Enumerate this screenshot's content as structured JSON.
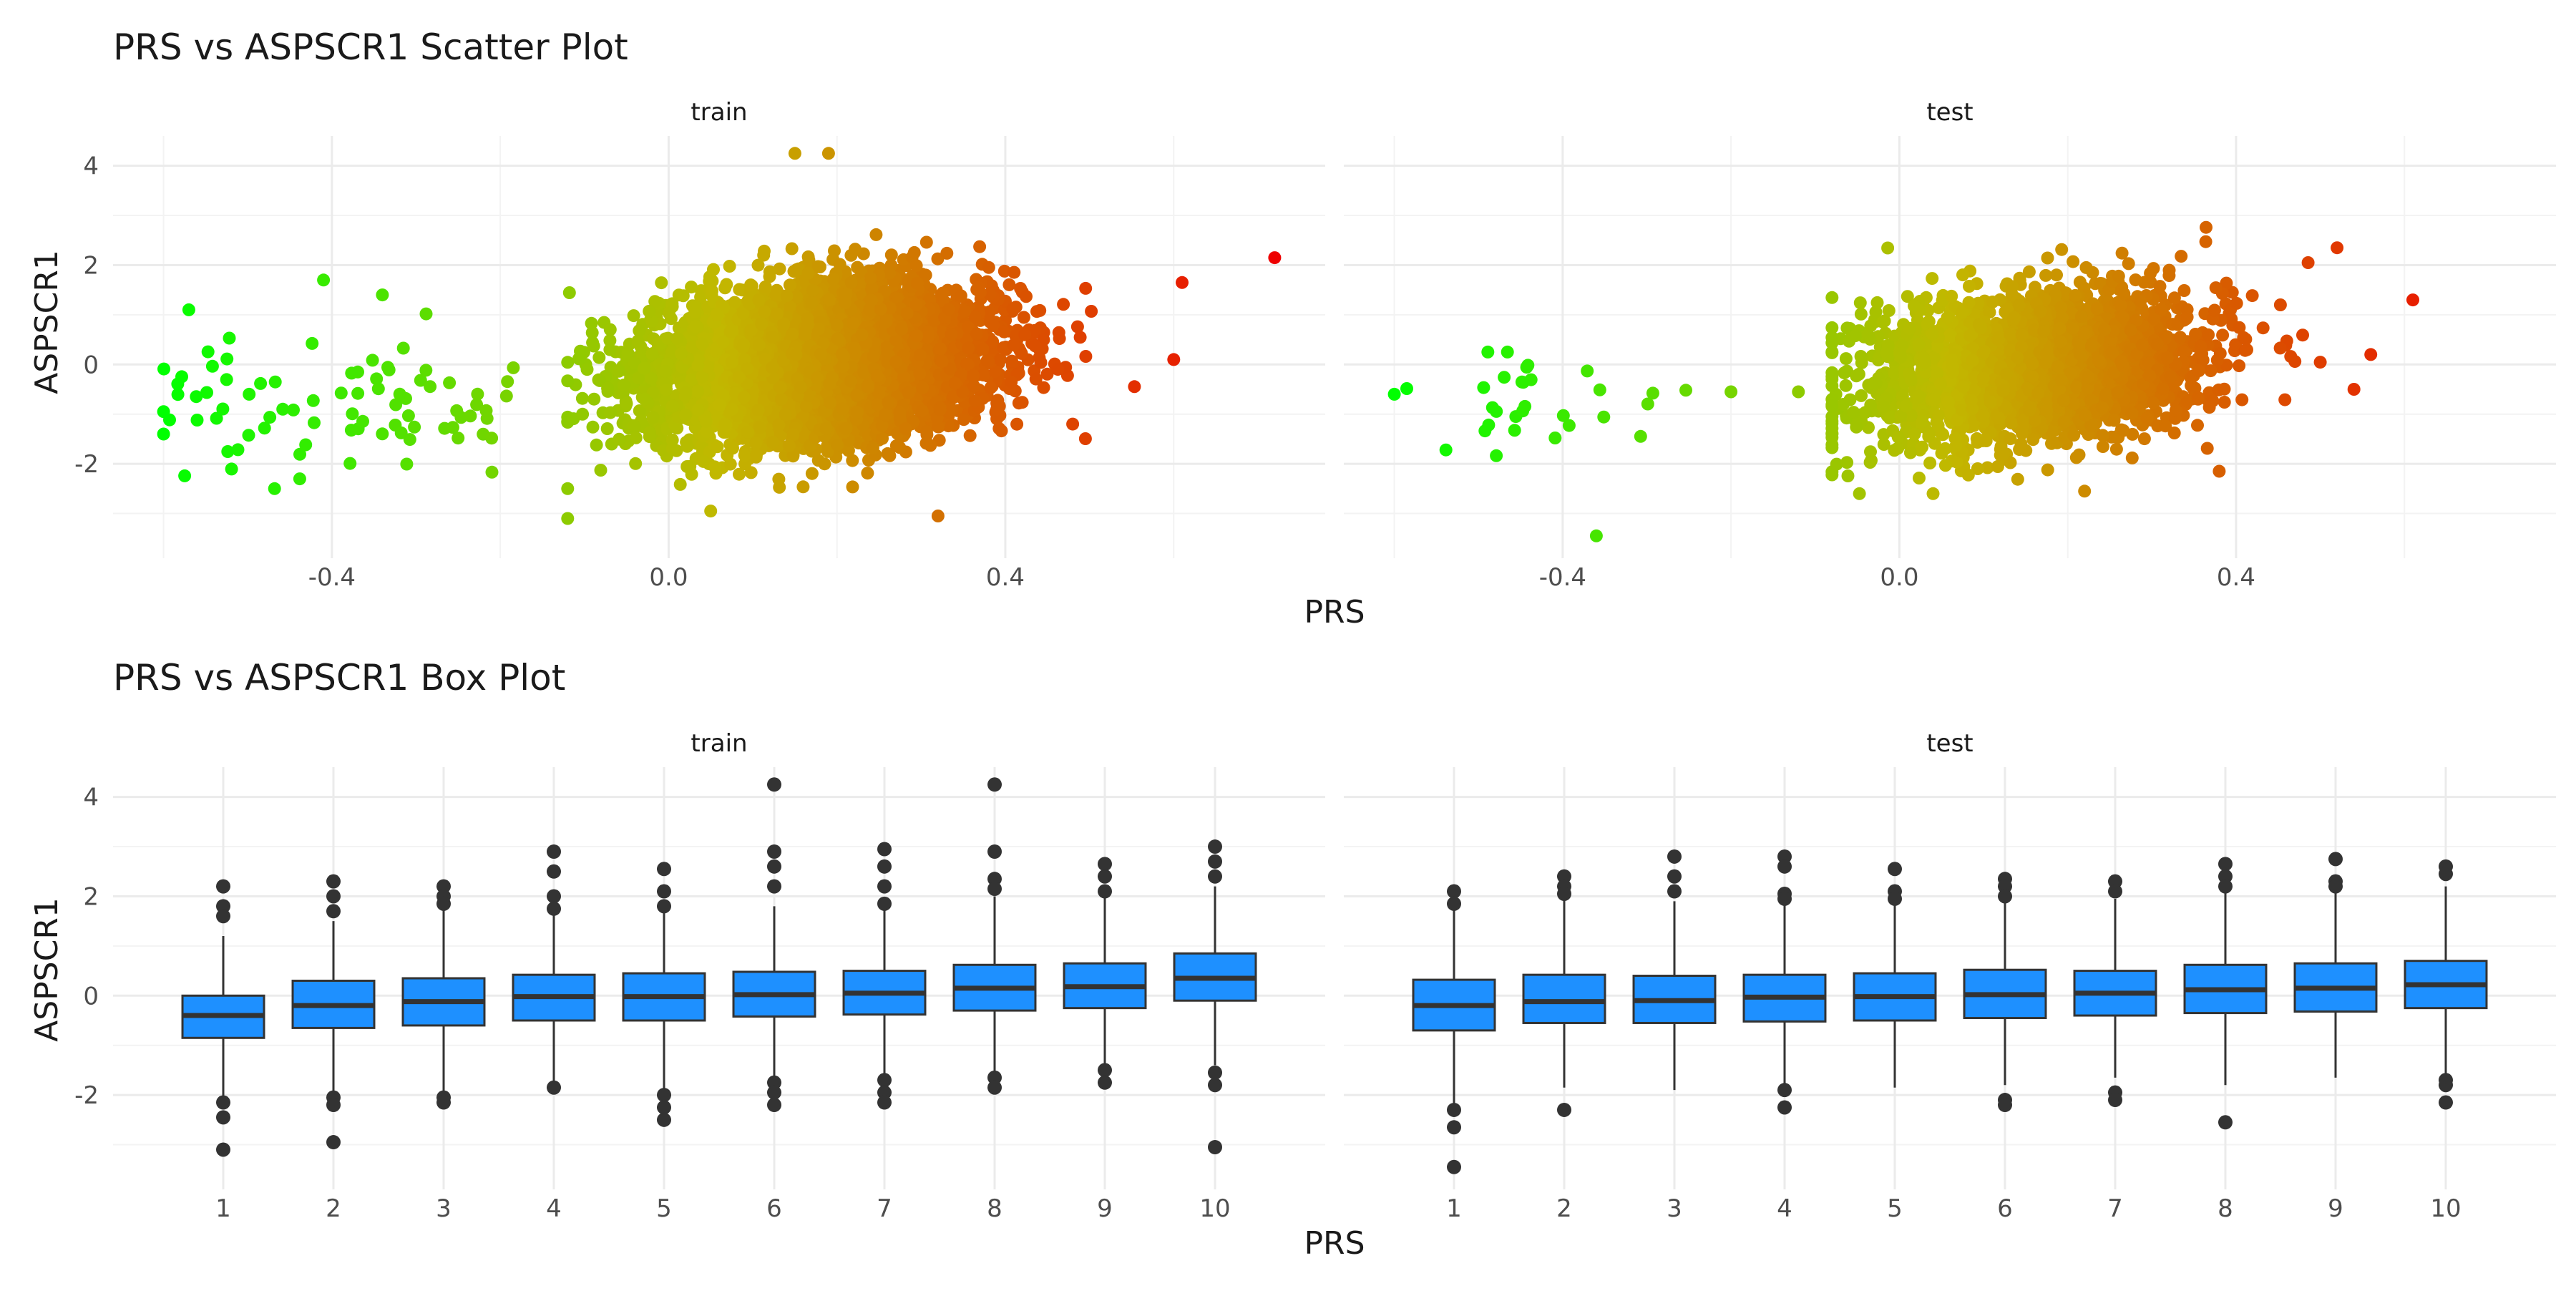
{
  "chart_data": [
    {
      "type": "scatter",
      "title": "PRS vs ASPSCR1 Scatter Plot",
      "xlabel": "PRS",
      "ylabel": "ASPSCR1",
      "xlim": [
        -0.66,
        0.78
      ],
      "ylim": [
        -3.9,
        4.6
      ],
      "xticks": [
        -0.4,
        0.0,
        0.4
      ],
      "xtick_labels": [
        "-0.4",
        "0.0",
        "0.4"
      ],
      "yticks": [
        -2,
        0,
        2,
        4
      ],
      "ytick_labels": [
        "-2",
        "0",
        "2",
        "4"
      ],
      "grid": true,
      "legend": "none",
      "color_scale": {
        "low": "#00ff00",
        "mid": "#c2b800",
        "high": "#ee0000",
        "range": [
          -0.6,
          0.72
        ]
      },
      "panels": [
        {
          "name": "train",
          "notable_points": [
            {
              "x": 0.15,
              "y": 4.25
            },
            {
              "x": 0.19,
              "y": 4.25
            },
            {
              "x": 0.72,
              "y": 2.15
            },
            {
              "x": -0.6,
              "y": -0.95
            },
            {
              "x": -0.6,
              "y": -1.4
            },
            {
              "x": -0.57,
              "y": 1.1
            },
            {
              "x": -0.41,
              "y": 1.7
            },
            {
              "x": -0.34,
              "y": 1.4
            },
            {
              "x": -0.12,
              "y": -3.1
            },
            {
              "x": 0.05,
              "y": -2.95
            },
            {
              "x": 0.32,
              "y": -3.05
            },
            {
              "x": 0.61,
              "y": 1.65
            },
            {
              "x": 0.6,
              "y": 0.1
            },
            {
              "x": 0.48,
              "y": -1.2
            }
          ],
          "clusters": [
            {
              "x_range": [
                -0.6,
                -0.18
              ],
              "y_range": [
                -2.5,
                1.7
              ],
              "approx_points": 80
            },
            {
              "x_range": [
                -0.12,
                0.58
              ],
              "y_range": [
                -2.6,
                3.0
              ],
              "center_y": [
                -0.4,
                0.6
              ],
              "approx_points": 5000
            }
          ]
        },
        {
          "name": "test",
          "notable_points": [
            {
              "x": 0.61,
              "y": 1.3
            },
            {
              "x": 0.52,
              "y": 2.35
            },
            {
              "x": -0.36,
              "y": -3.45
            },
            {
              "x": -0.6,
              "y": -0.6
            },
            {
              "x": -0.2,
              "y": -0.55
            },
            {
              "x": -0.12,
              "y": -0.55
            },
            {
              "x": 0.04,
              "y": -2.6
            },
            {
              "x": 0.22,
              "y": -2.55
            },
            {
              "x": 0.38,
              "y": -2.15
            },
            {
              "x": 0.56,
              "y": 0.2
            },
            {
              "x": 0.54,
              "y": -0.5
            }
          ],
          "clusters": [
            {
              "x_range": [
                -0.6,
                -0.25
              ],
              "y_range": [
                -3.45,
                0.25
              ],
              "approx_points": 30
            },
            {
              "x_range": [
                -0.08,
                0.5
              ],
              "y_range": [
                -2.6,
                2.9
              ],
              "center_y": [
                -0.5,
                0.5
              ],
              "approx_points": 2500
            }
          ]
        }
      ]
    },
    {
      "type": "box",
      "title": "PRS vs ASPSCR1 Box Plot",
      "xlabel": "PRS",
      "ylabel": "ASPSCR1",
      "categories": [
        "1",
        "2",
        "3",
        "4",
        "5",
        "6",
        "7",
        "8",
        "9",
        "10"
      ],
      "ylim": [
        -3.9,
        4.6
      ],
      "yticks": [
        -2,
        0,
        2,
        4
      ],
      "ytick_labels": [
        "-2",
        "0",
        "2",
        "4"
      ],
      "grid": true,
      "box_fill": "#1e90ff",
      "panels": [
        {
          "name": "train",
          "boxes": [
            {
              "q1": -0.85,
              "median": -0.4,
              "q3": 0.0,
              "whisker_low": -2.05,
              "whisker_high": 1.2,
              "outliers": [
                2.2,
                1.8,
                1.6,
                -2.15,
                -2.45,
                -3.1
              ]
            },
            {
              "q1": -0.65,
              "median": -0.2,
              "q3": 0.3,
              "whisker_low": -2.0,
              "whisker_high": 1.5,
              "outliers": [
                2.3,
                2.0,
                1.7,
                -2.05,
                -2.2,
                -2.95
              ]
            },
            {
              "q1": -0.6,
              "median": -0.12,
              "q3": 0.35,
              "whisker_low": -1.95,
              "whisker_high": 1.75,
              "outliers": [
                2.2,
                2.0,
                1.85,
                -2.05,
                -2.15
              ]
            },
            {
              "q1": -0.5,
              "median": -0.02,
              "q3": 0.42,
              "whisker_low": -1.85,
              "whisker_high": 1.7,
              "outliers": [
                2.9,
                2.5,
                2.0,
                1.75,
                -1.85
              ]
            },
            {
              "q1": -0.5,
              "median": -0.02,
              "q3": 0.45,
              "whisker_low": -1.9,
              "whisker_high": 1.75,
              "outliers": [
                2.55,
                2.1,
                1.8,
                -2.0,
                -2.25,
                -2.5
              ]
            },
            {
              "q1": -0.42,
              "median": 0.02,
              "q3": 0.48,
              "whisker_low": -1.7,
              "whisker_high": 1.8,
              "outliers": [
                4.25,
                2.9,
                2.6,
                2.2,
                -1.75,
                -1.95,
                -2.2
              ]
            },
            {
              "q1": -0.38,
              "median": 0.05,
              "q3": 0.5,
              "whisker_low": -1.6,
              "whisker_high": 1.85,
              "outliers": [
                2.95,
                2.6,
                2.2,
                1.85,
                -1.7,
                -1.95,
                -2.15
              ]
            },
            {
              "q1": -0.3,
              "median": 0.15,
              "q3": 0.62,
              "whisker_low": -1.55,
              "whisker_high": 2.0,
              "outliers": [
                4.25,
                2.9,
                2.35,
                2.15,
                -1.65,
                -1.85
              ]
            },
            {
              "q1": -0.25,
              "median": 0.18,
              "q3": 0.65,
              "whisker_low": -1.5,
              "whisker_high": 2.0,
              "outliers": [
                2.65,
                2.4,
                2.1,
                -1.5,
                -1.75
              ]
            },
            {
              "q1": -0.1,
              "median": 0.35,
              "q3": 0.85,
              "whisker_low": -1.4,
              "whisker_high": 2.2,
              "outliers": [
                3.0,
                2.7,
                2.4,
                -1.55,
                -1.8,
                -3.05
              ]
            }
          ]
        },
        {
          "name": "test",
          "boxes": [
            {
              "q1": -0.7,
              "median": -0.2,
              "q3": 0.32,
              "whisker_low": -2.2,
              "whisker_high": 1.75,
              "outliers": [
                2.1,
                1.85,
                -2.3,
                -2.65,
                -3.45
              ]
            },
            {
              "q1": -0.55,
              "median": -0.12,
              "q3": 0.42,
              "whisker_low": -1.85,
              "whisker_high": 1.95,
              "outliers": [
                2.4,
                2.2,
                2.05,
                -2.3
              ]
            },
            {
              "q1": -0.55,
              "median": -0.1,
              "q3": 0.4,
              "whisker_low": -1.9,
              "whisker_high": 1.9,
              "outliers": [
                2.8,
                2.4,
                2.1
              ]
            },
            {
              "q1": -0.52,
              "median": -0.03,
              "q3": 0.42,
              "whisker_low": -1.8,
              "whisker_high": 1.85,
              "outliers": [
                2.8,
                2.6,
                2.05,
                1.95,
                -1.9,
                -2.25
              ]
            },
            {
              "q1": -0.5,
              "median": -0.02,
              "q3": 0.45,
              "whisker_low": -1.85,
              "whisker_high": 1.85,
              "outliers": [
                2.55,
                2.1,
                1.95
              ]
            },
            {
              "q1": -0.45,
              "median": 0.02,
              "q3": 0.52,
              "whisker_low": -1.8,
              "whisker_high": 1.95,
              "outliers": [
                2.35,
                2.2,
                2.0,
                -2.1,
                -2.2
              ]
            },
            {
              "q1": -0.4,
              "median": 0.05,
              "q3": 0.5,
              "whisker_low": -1.65,
              "whisker_high": 1.95,
              "outliers": [
                2.3,
                2.1,
                -1.95,
                -2.1
              ]
            },
            {
              "q1": -0.35,
              "median": 0.12,
              "q3": 0.62,
              "whisker_low": -1.8,
              "whisker_high": 2.1,
              "outliers": [
                2.65,
                2.4,
                2.2,
                -2.55
              ]
            },
            {
              "q1": -0.32,
              "median": 0.15,
              "q3": 0.65,
              "whisker_low": -1.65,
              "whisker_high": 2.1,
              "outliers": [
                2.75,
                2.3,
                2.2
              ]
            },
            {
              "q1": -0.25,
              "median": 0.22,
              "q3": 0.7,
              "whisker_low": -1.65,
              "whisker_high": 2.2,
              "outliers": [
                2.6,
                2.45,
                -1.7,
                -1.8,
                -2.15
              ]
            }
          ]
        }
      ]
    }
  ]
}
